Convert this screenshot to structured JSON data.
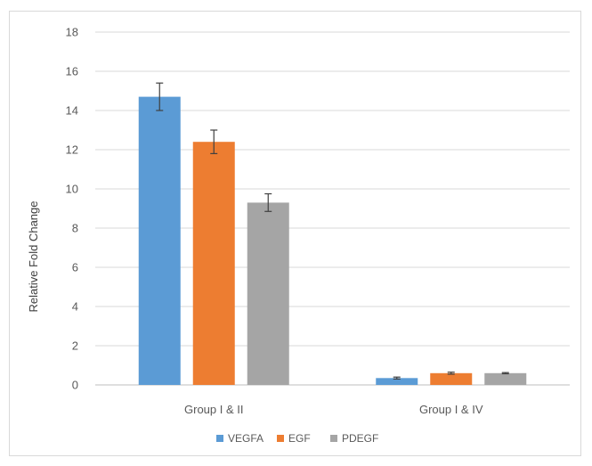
{
  "chart_data": {
    "type": "bar",
    "title": "",
    "xlabel": "",
    "ylabel": "Relative Fold Change",
    "ylim": [
      0,
      18
    ],
    "yticks": [
      0,
      2,
      4,
      6,
      8,
      10,
      12,
      14,
      16,
      18
    ],
    "grid": true,
    "legend_position": "bottom",
    "categories": [
      "Group I & II",
      "Group I & IV"
    ],
    "series": [
      {
        "name": "VEGFA",
        "color": "#5b9bd5",
        "values": [
          14.7,
          0.35
        ],
        "errors": [
          0.7,
          0.05
        ]
      },
      {
        "name": "EGF",
        "color": "#ed7d31",
        "values": [
          12.4,
          0.6
        ],
        "errors": [
          0.6,
          0.05
        ]
      },
      {
        "name": "PDEGF",
        "color": "#a5a5a5",
        "values": [
          9.3,
          0.6
        ],
        "errors": [
          0.45,
          0.03
        ]
      }
    ]
  }
}
